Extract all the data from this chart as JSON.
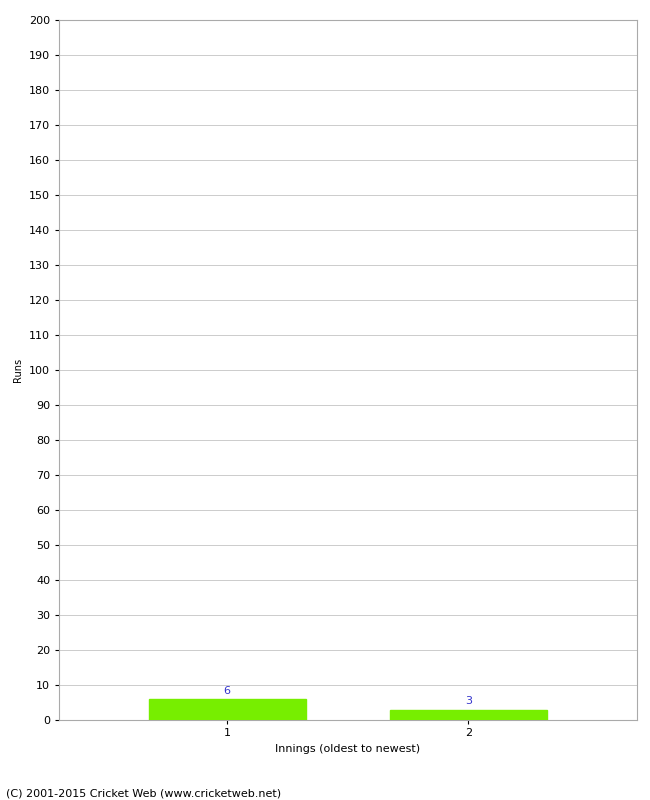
{
  "innings": [
    1,
    2
  ],
  "runs": [
    6,
    3
  ],
  "bar_color": "#77ee00",
  "bar_width": 0.65,
  "xlabel": "Innings (oldest to newest)",
  "ylabel": "Runs",
  "ylim": [
    0,
    200
  ],
  "yticks": [
    0,
    10,
    20,
    30,
    40,
    50,
    60,
    70,
    80,
    90,
    100,
    110,
    120,
    130,
    140,
    150,
    160,
    170,
    180,
    190,
    200
  ],
  "xtick_labels": [
    "1",
    "2"
  ],
  "value_label_color": "#3333cc",
  "value_label_fontsize": 8,
  "axis_label_fontsize": 8,
  "tick_fontsize": 8,
  "ylabel_fontsize": 7,
  "footer_text": "(C) 2001-2015 Cricket Web (www.cricketweb.net)",
  "footer_fontsize": 8,
  "background_color": "#ffffff",
  "grid_color": "#cccccc",
  "spine_color": "#aaaaaa"
}
